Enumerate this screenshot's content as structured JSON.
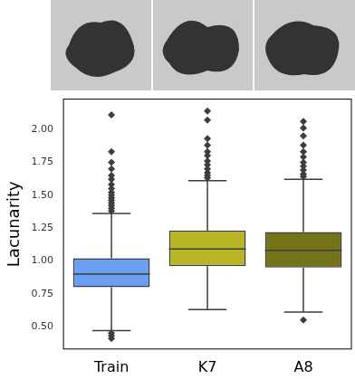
{
  "chart_data": {
    "type": "box",
    "categories": [
      "Train",
      "K7",
      "A8"
    ],
    "values": [
      {
        "min": 0.47,
        "q1": 0.8,
        "median": 0.9,
        "q3": 1.02,
        "max": 1.36,
        "outliers": [
          0.41,
          0.43,
          0.45,
          1.38,
          1.4,
          1.42,
          1.44,
          1.46,
          1.48,
          1.5,
          1.52,
          1.55,
          1.58,
          1.62,
          1.65,
          1.7,
          1.75,
          1.83,
          2.11
        ]
      },
      {
        "min": 0.63,
        "q1": 0.96,
        "median": 1.09,
        "q3": 1.23,
        "max": 1.61,
        "outliers": [
          1.63,
          1.65,
          1.67,
          1.7,
          1.73,
          1.76,
          1.8,
          1.83,
          1.88,
          1.93,
          2.07,
          2.14
        ]
      },
      {
        "min": 0.61,
        "q1": 0.95,
        "median": 1.08,
        "q3": 1.22,
        "max": 1.62,
        "outliers": [
          0.55,
          1.64,
          1.66,
          1.69,
          1.72,
          1.75,
          1.79,
          1.83,
          1.88,
          1.95,
          2.01,
          2.06
        ]
      }
    ],
    "colors": [
      "#6a9ef0",
      "#b9b626",
      "#74731a"
    ],
    "ylabel": "Lacunarity",
    "ylim": [
      0.33,
      2.23
    ],
    "yticks": [
      {
        "value": 0.5,
        "label": "0.50"
      },
      {
        "value": 0.75,
        "label": "0.75"
      },
      {
        "value": 1.0,
        "label": "1.00"
      },
      {
        "value": 1.25,
        "label": "1.25"
      },
      {
        "value": 1.5,
        "label": "1.50"
      },
      {
        "value": 1.75,
        "label": "1.75"
      },
      {
        "value": 2.0,
        "label": "2.00"
      }
    ],
    "grid": false
  }
}
